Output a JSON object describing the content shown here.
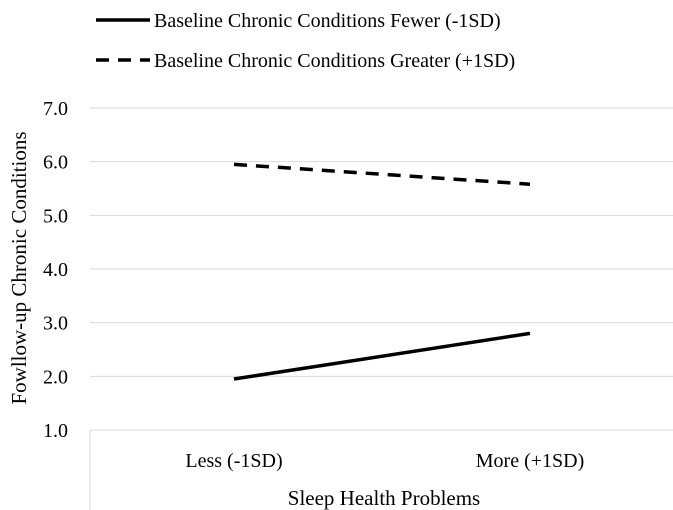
{
  "chart_data": {
    "type": "line",
    "title": "",
    "xlabel": "Sleep Health Problems",
    "ylabel": "Fowllow-up Chronic Conditions",
    "categories": [
      "Less (-1SD)",
      "More (+1SD)"
    ],
    "ylim": [
      1.0,
      7.0
    ],
    "yticks": [
      "1.0",
      "2.0",
      "3.0",
      "4.0",
      "5.0",
      "6.0",
      "7.0"
    ],
    "grid": true,
    "legend_position": "top-left",
    "series": [
      {
        "name": "Baseline Chronic Conditions Fewer (-1SD)",
        "values": [
          1.95,
          2.8
        ],
        "style": "solid",
        "color": "#000000"
      },
      {
        "name": "Baseline Chronic Conditions Greater (+1SD)",
        "values": [
          5.95,
          5.58
        ],
        "style": "dashed",
        "color": "#000000"
      }
    ]
  }
}
